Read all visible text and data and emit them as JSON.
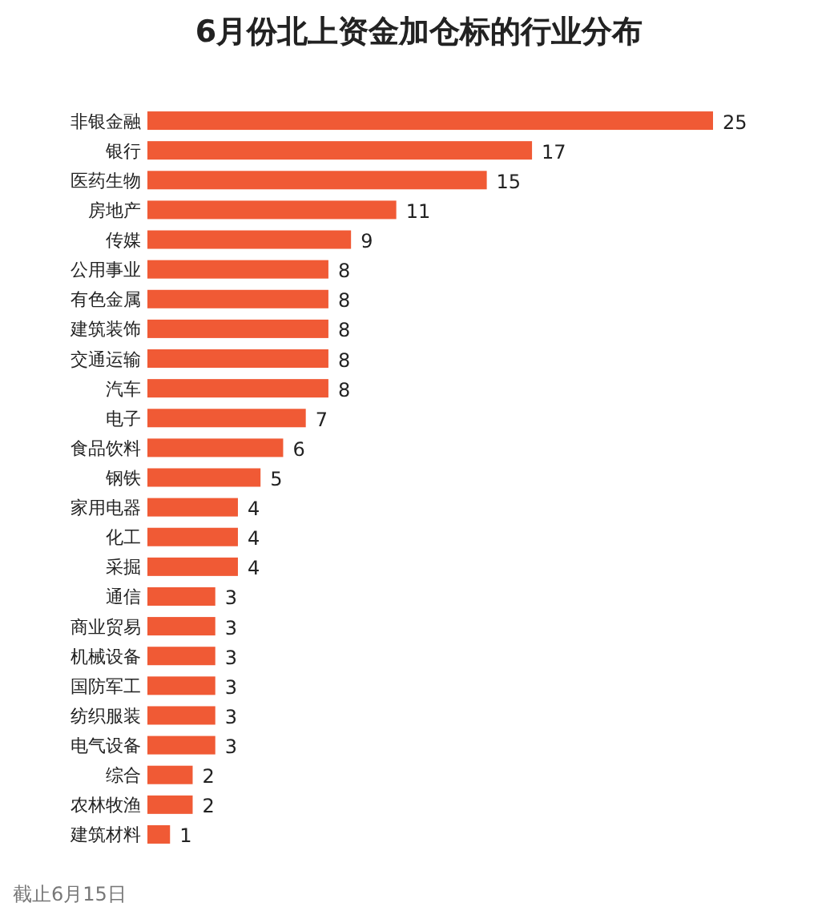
{
  "chart_data": {
    "type": "bar",
    "orientation": "horizontal",
    "title": "6月份北上资金加仓标的行业分布",
    "categories": [
      "非银金融",
      "银行",
      "医药生物",
      "房地产",
      "传媒",
      "公用事业",
      "有色金属",
      "建筑装饰",
      "交通运输",
      "汽车",
      "电子",
      "食品饮料",
      "钢铁",
      "家用电器",
      "化工",
      "采掘",
      "通信",
      "商业贸易",
      "机械设备",
      "国防军工",
      "纺织服装",
      "电气设备",
      "综合",
      "农林牧渔",
      "建筑材料"
    ],
    "values": [
      25,
      17,
      15,
      11,
      9,
      8,
      8,
      8,
      8,
      8,
      7,
      6,
      5,
      4,
      4,
      4,
      3,
      3,
      3,
      3,
      3,
      3,
      2,
      2,
      1
    ],
    "color": "#f05a35",
    "data_labels": true,
    "annotations": [
      "截止6月15日"
    ]
  }
}
